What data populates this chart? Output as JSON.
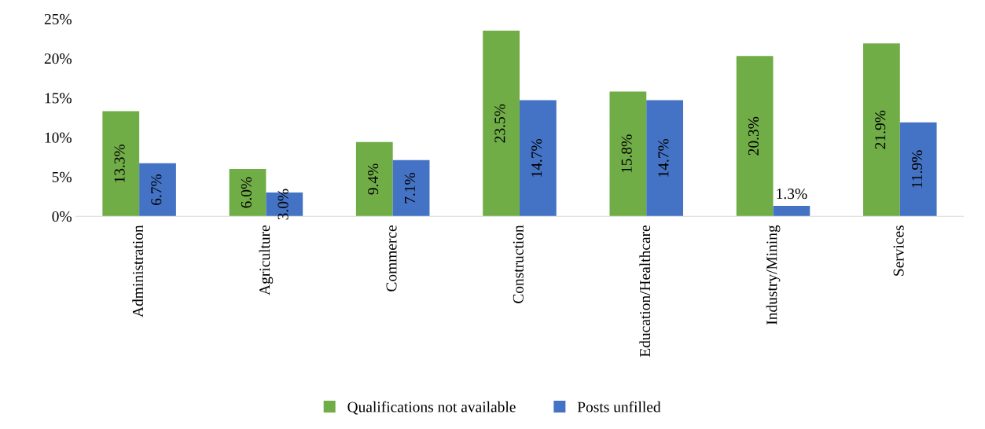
{
  "chart_data": {
    "type": "bar",
    "categories": [
      "Administration",
      "Agriculture",
      "Commerce",
      "Construction",
      "Education/Healthcare",
      "Industry/Mining",
      "Services"
    ],
    "series": [
      {
        "name": "Qualifications not available",
        "color": "#70ad47",
        "values": [
          13.3,
          6.0,
          9.4,
          23.5,
          15.8,
          20.3,
          21.9
        ],
        "value_labels": [
          "13.3%",
          "6.0%",
          "9.4%",
          "23.5%",
          "15.8%",
          "20.3%",
          "21.9%"
        ]
      },
      {
        "name": "Posts unfilled",
        "color": "#4472c4",
        "values": [
          6.7,
          3.0,
          7.1,
          14.7,
          14.7,
          1.3,
          11.9
        ],
        "value_labels": [
          "6.7%",
          "3.0%",
          "7.1%",
          "14.7%",
          "14.7%",
          "1.3%",
          "11.9%"
        ]
      }
    ],
    "ylim": [
      0,
      25
    ],
    "yticks": [
      {
        "value": 0,
        "label": "0%"
      },
      {
        "value": 5,
        "label": "5%"
      },
      {
        "value": 10,
        "label": "10%"
      },
      {
        "value": 15,
        "label": "15%"
      },
      {
        "value": 20,
        "label": "20%"
      },
      {
        "value": 25,
        "label": "25%"
      }
    ],
    "grid": false,
    "legend": "bottom"
  }
}
